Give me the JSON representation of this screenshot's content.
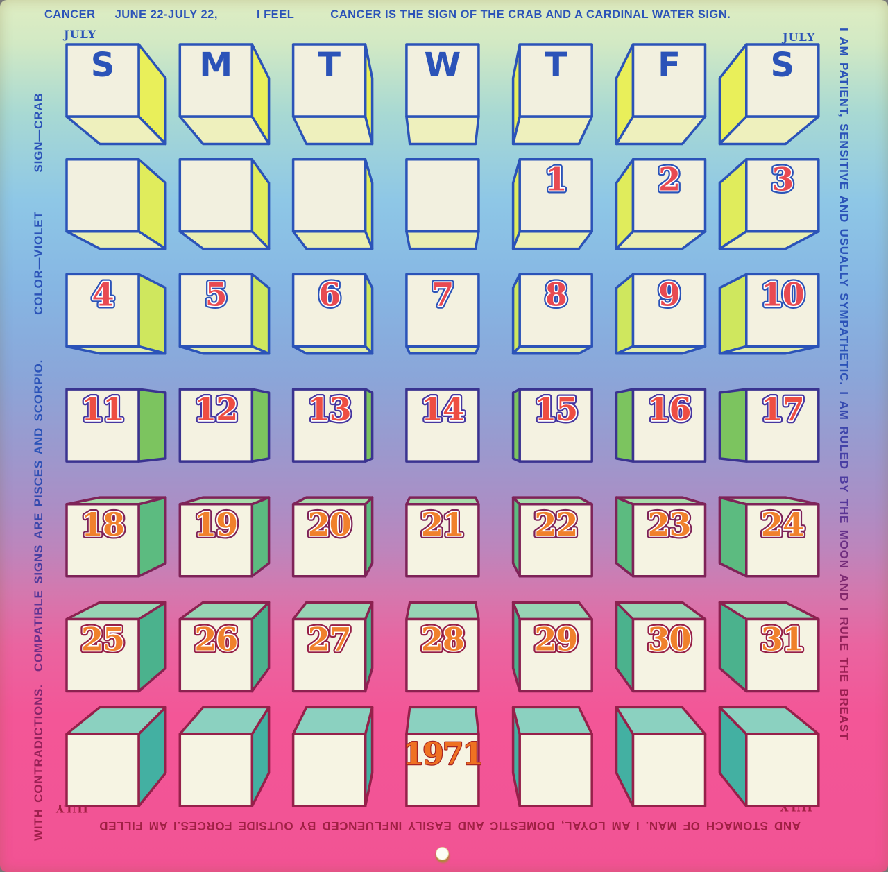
{
  "header": {
    "title": "CANCER",
    "dates": "JUNE 22-JULY 22,",
    "feel": "I FEEL",
    "description": "CANCER IS THE SIGN OF THE CRAB AND A CARDINAL WATER SIGN."
  },
  "corners": {
    "top_left": "JULY",
    "top_right": "JULY",
    "bottom_left": "JULY",
    "bottom_right": "JULY"
  },
  "edges": {
    "right": "I AM PATIENT, SENSITIVE AND USUALLY SYMPATHETIC. I AM RULED BY THE MOON AND I RULE THE BREAST",
    "bottom": "AND STOMACH OF MAN. I AM LOYAL, DOMESTIC AND EASILY INFLUENCED BY OUTSIDE FORCES.I AM FILLED",
    "left_segments": [
      "WITH CONTRADICTIONS.",
      "COMPATIBLE SIGNS ARE PISCES AND SCORPIO.",
      "COLOR—VIOLET",
      "SIGN—CRAB"
    ]
  },
  "calendar": {
    "month": "JULY",
    "year": "1971",
    "day_headers": [
      "S",
      "M",
      "T",
      "W",
      "T",
      "F",
      "S"
    ],
    "weeks": [
      [
        "",
        "",
        "",
        "",
        "1",
        "2",
        "3"
      ],
      [
        "4",
        "5",
        "6",
        "7",
        "8",
        "9",
        "10"
      ],
      [
        "11",
        "12",
        "13",
        "14",
        "15",
        "16",
        "17"
      ],
      [
        "18",
        "19",
        "20",
        "21",
        "22",
        "23",
        "24"
      ],
      [
        "25",
        "26",
        "27",
        "28",
        "29",
        "30",
        "31"
      ],
      [
        "",
        "",
        "",
        "1971",
        "",
        "",
        ""
      ]
    ]
  },
  "colors": {
    "edge_text_blue": "#2b53b8",
    "edge_text_maroon": "#a01f4a",
    "day_letter": "#2b53b8",
    "cube_outline": [
      "#2b53b8",
      "#2b53b8",
      "#2b53b8",
      "#3a3390",
      "#7e2358",
      "#8c2150",
      "#96204a"
    ],
    "cube_side": [
      "#e9ef5a",
      "#e0ec5c",
      "#cfe75e",
      "#7cc45f",
      "#5cbb80",
      "#4bb28d",
      "#43b0a2"
    ],
    "cube_horiz": [
      "#eef0bd",
      "#eaefb2",
      "#e2edad",
      "",
      "#a8dbab",
      "#97d4b4",
      "#8bd1c0"
    ],
    "cube_front": [
      "#f2f0df",
      "#f2f0df",
      "#f3f1e0",
      "#f4f2e1",
      "#f5f3e2",
      "#f5f3e3",
      "#f6f4e3"
    ],
    "number_fill": [
      "#e84a52",
      "#e84a52",
      "#ee4e42",
      "#f0812c",
      "#f0812c"
    ],
    "number_outline": [
      "#2b53b8",
      "#2b53b8",
      "#4636a0",
      "#7e2358",
      "#962048"
    ],
    "year_fill": "#ef7122",
    "year_outline": "#a62524",
    "background_top": "#dfedc2",
    "background_mid": "#8cc5e7",
    "background_bottom": "#f25394"
  }
}
